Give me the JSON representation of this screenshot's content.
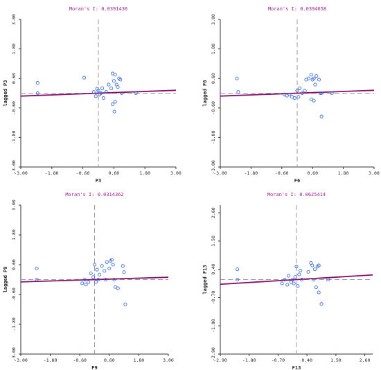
{
  "chart_data": [
    {
      "type": "scatter",
      "title": "Moran's I: 0.0391436",
      "xlabel": "P3",
      "ylabel": "lagged P3",
      "xlim": [
        -3.0,
        3.0
      ],
      "ylim": [
        -3.0,
        3.0
      ],
      "xticks": [
        "-3.00",
        "-1.80",
        "-0.60",
        "0.60",
        "1.80",
        "3.00"
      ],
      "yticks": [
        "-3.00",
        "-1.80",
        "-0.60",
        "0.60",
        "1.80",
        "3.00"
      ],
      "xtick_values": [
        -3.0,
        -1.8,
        -0.6,
        0.6,
        1.8,
        3.0
      ],
      "ytick_values": [
        -3.0,
        -1.8,
        -0.6,
        0.6,
        1.8,
        3.0
      ],
      "slope": 0.0391436,
      "intercept": 0.0,
      "points": [
        [
          -2.35,
          0.42
        ],
        [
          -2.35,
          0.0
        ],
        [
          -0.55,
          0.63
        ],
        [
          -0.18,
          0.05
        ],
        [
          -0.1,
          -0.12
        ],
        [
          -0.05,
          0.18
        ],
        [
          0.0,
          0.1
        ],
        [
          0.05,
          -0.05
        ],
        [
          0.1,
          0.0
        ],
        [
          0.15,
          0.2
        ],
        [
          0.2,
          -0.2
        ],
        [
          0.3,
          0.05
        ],
        [
          0.4,
          0.35
        ],
        [
          0.5,
          0.2
        ],
        [
          0.55,
          0.8
        ],
        [
          0.6,
          0.5
        ],
        [
          0.65,
          0.75
        ],
        [
          0.7,
          0.35
        ],
        [
          0.75,
          0.25
        ],
        [
          0.8,
          0.6
        ],
        [
          0.85,
          0.55
        ],
        [
          0.9,
          0.0
        ],
        [
          0.55,
          -0.45
        ],
        [
          0.65,
          -0.35
        ],
        [
          0.62,
          -0.75
        ],
        [
          1.45,
          0.0
        ]
      ]
    },
    {
      "type": "scatter",
      "title": "Moran's I: 0.0394658",
      "xlabel": "F6",
      "ylabel": "lagged F6",
      "xlim": [
        -3.0,
        3.0
      ],
      "ylim": [
        -3.0,
        3.0
      ],
      "xticks": [
        "-3.00",
        "-1.80",
        "-0.60",
        "0.60",
        "1.80",
        "3.00"
      ],
      "yticks": [
        "-3.00",
        "-1.80",
        "-0.60",
        "0.60",
        "1.80",
        "3.00"
      ],
      "xtick_values": [
        -3.0,
        -1.8,
        -0.6,
        0.6,
        1.8,
        3.0
      ],
      "ytick_values": [
        -3.0,
        -1.8,
        -0.6,
        0.6,
        1.8,
        3.0
      ],
      "slope": 0.0394658,
      "intercept": 0.0,
      "points": [
        [
          -2.35,
          0.6
        ],
        [
          -2.3,
          0.05
        ],
        [
          -0.5,
          -0.05
        ],
        [
          -0.4,
          -0.1
        ],
        [
          -0.3,
          -0.05
        ],
        [
          -0.2,
          -0.15
        ],
        [
          -0.1,
          -0.2
        ],
        [
          0.0,
          0.1
        ],
        [
          0.05,
          -0.15
        ],
        [
          0.1,
          0.2
        ],
        [
          0.2,
          0.0
        ],
        [
          0.3,
          0.1
        ],
        [
          0.35,
          0.55
        ],
        [
          0.45,
          0.6
        ],
        [
          0.55,
          0.75
        ],
        [
          0.6,
          0.55
        ],
        [
          0.65,
          0.6
        ],
        [
          0.7,
          0.35
        ],
        [
          0.75,
          0.7
        ],
        [
          0.85,
          0.55
        ],
        [
          0.9,
          0.0
        ],
        [
          0.55,
          -0.25
        ],
        [
          0.65,
          -0.3
        ],
        [
          0.95,
          0.0
        ],
        [
          0.95,
          -0.95
        ],
        [
          1.35,
          0.0
        ]
      ]
    },
    {
      "type": "scatter",
      "title": "Moran's I: 0.0314362",
      "xlabel": "P9",
      "ylabel": "lagged P9",
      "xlim": [
        -3.0,
        3.0
      ],
      "ylim": [
        -3.0,
        3.0
      ],
      "xticks": [
        "-3.00",
        "-1.80",
        "-0.60",
        "0.60",
        "1.80",
        "3.00"
      ],
      "yticks": [
        "-3.00",
        "-1.80",
        "-0.60",
        "0.60",
        "1.80",
        "3.00"
      ],
      "xtick_values": [
        -3.0,
        -1.8,
        -0.6,
        0.6,
        1.8,
        3.0
      ],
      "ytick_values": [
        -3.0,
        -1.8,
        -0.6,
        0.6,
        1.8,
        3.0
      ],
      "slope": 0.0314362,
      "intercept": 0.0,
      "points": [
        [
          -2.35,
          0.45
        ],
        [
          -2.35,
          0.0
        ],
        [
          -0.5,
          -0.15
        ],
        [
          -0.4,
          0.0
        ],
        [
          -0.35,
          -0.2
        ],
        [
          -0.25,
          -0.1
        ],
        [
          -0.15,
          0.25
        ],
        [
          -0.05,
          0.1
        ],
        [
          0.0,
          0.6
        ],
        [
          0.05,
          -0.1
        ],
        [
          0.1,
          0.4
        ],
        [
          0.15,
          0.0
        ],
        [
          0.2,
          0.2
        ],
        [
          0.3,
          0.55
        ],
        [
          0.4,
          0.35
        ],
        [
          0.5,
          0.7
        ],
        [
          0.6,
          0.45
        ],
        [
          0.65,
          0.75
        ],
        [
          0.7,
          0.8
        ],
        [
          0.75,
          0.6
        ],
        [
          0.8,
          0.0
        ],
        [
          0.85,
          -0.3
        ],
        [
          0.95,
          -0.35
        ],
        [
          1.15,
          0.55
        ],
        [
          1.2,
          0.3
        ],
        [
          1.25,
          -1.0
        ],
        [
          0.45,
          0.0
        ]
      ]
    },
    {
      "type": "scatter",
      "title": "Moran's I: 0.0625414",
      "xlabel": "F13",
      "ylabel": "lagged F13",
      "xlim": [
        -2.9,
        2.9
      ],
      "ylim": [
        -2.9,
        2.9
      ],
      "xticks": [
        "-2.90",
        "-1.80",
        "-0.70",
        "0.40",
        "1.50",
        "2.60"
      ],
      "yticks": [
        "-2.90",
        "-1.80",
        "-0.70",
        "0.40",
        "1.50",
        "2.60"
      ],
      "xtick_values": [
        -2.9,
        -1.8,
        -0.7,
        0.4,
        1.5,
        2.6
      ],
      "ytick_values": [
        -2.9,
        -1.8,
        -0.7,
        0.4,
        1.5,
        2.6
      ],
      "slope": 0.0625414,
      "intercept": 0.0,
      "points": [
        [
          -2.25,
          0.4
        ],
        [
          -2.25,
          0.0
        ],
        [
          -0.55,
          -0.15
        ],
        [
          -0.45,
          0.0
        ],
        [
          -0.35,
          -0.2
        ],
        [
          -0.3,
          0.15
        ],
        [
          -0.2,
          -0.1
        ],
        [
          -0.15,
          0.0
        ],
        [
          -0.1,
          -0.15
        ],
        [
          -0.05,
          0.1
        ],
        [
          0.0,
          0.5
        ],
        [
          0.05,
          -0.25
        ],
        [
          0.1,
          0.2
        ],
        [
          0.15,
          0.35
        ],
        [
          0.2,
          0.0
        ],
        [
          0.45,
          0.3
        ],
        [
          0.55,
          0.65
        ],
        [
          0.6,
          0.55
        ],
        [
          0.7,
          0.4
        ],
        [
          0.8,
          0.5
        ],
        [
          0.85,
          0.55
        ],
        [
          0.75,
          -0.3
        ],
        [
          0.85,
          -0.5
        ],
        [
          0.95,
          -0.95
        ],
        [
          1.2,
          0.0
        ],
        [
          0.65,
          0.0
        ]
      ]
    }
  ],
  "colors": {
    "title": "#a0209c",
    "regression": "#8b0a6e",
    "points": "#3a6fd8",
    "axis": "#333333",
    "dashed": "#9a9a9a"
  }
}
